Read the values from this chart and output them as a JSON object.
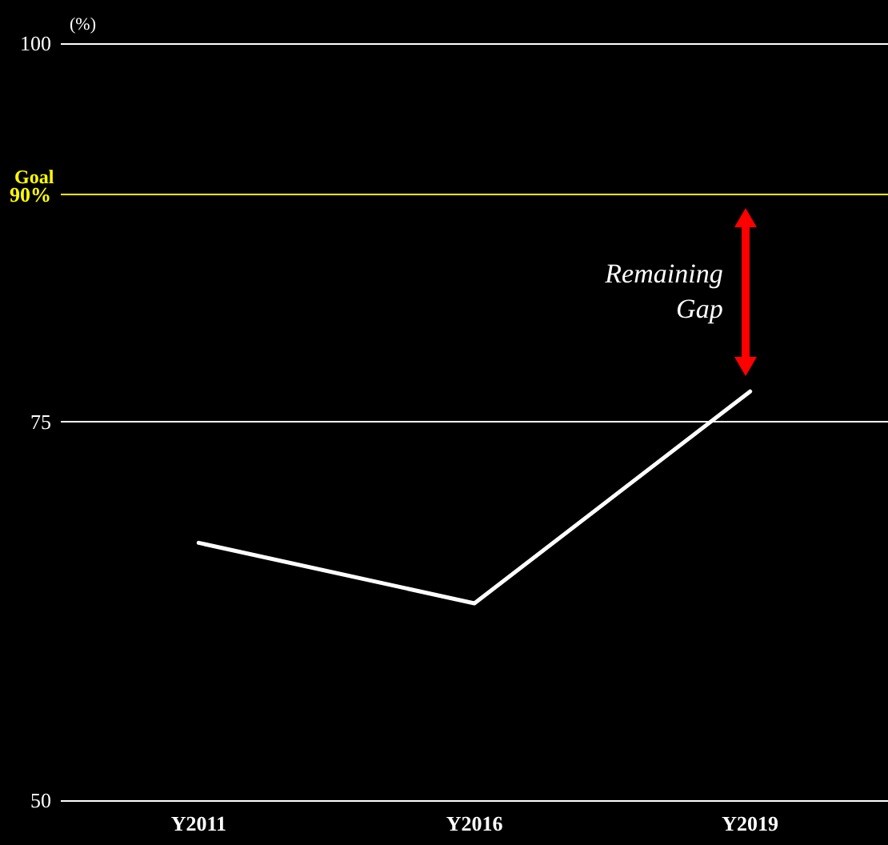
{
  "chart_data": {
    "type": "line",
    "ylabel": "(%)",
    "categories": [
      "Y2011",
      "Y2016",
      "Y2019"
    ],
    "series": [
      {
        "color": "#ffffff",
        "values": [
          67,
          63,
          77
        ]
      }
    ],
    "ylim": [
      50,
      100
    ],
    "yticks": [
      50,
      75,
      100
    ],
    "grid": "y",
    "marker": "none",
    "line_style": "solid",
    "ref_lines": [
      {
        "axis": "y",
        "value": 90,
        "label": "Goal",
        "color": "#ffff00"
      }
    ],
    "annotations": [
      "Remaining Gap",
      "90%"
    ]
  }
}
